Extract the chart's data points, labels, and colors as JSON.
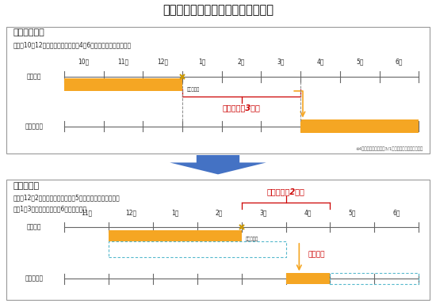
{
  "title": "原燃料費調整制度の見直しについて",
  "title_bg": "#c8f0f8",
  "panel1": {
    "label": "【現行制度】",
    "subtitle1": "〔例〕10－12月の平均燃料価格が翌4－6月分の燃料費調整に適用",
    "months": [
      "10月",
      "11月",
      "12月",
      "1月",
      "2月",
      "3月",
      "4月",
      "5月",
      "6月"
    ],
    "stats_label": "統計値公表",
    "timelag_label": "タイムラグ3ヶ月",
    "note": "※4月分料金は、最短で3/1から使用される料金に適用",
    "ylabel_fuel": "燃料価格",
    "ylabel_adj": "燃料費調整"
  },
  "panel2": {
    "label": "【新制度】",
    "subtitle1": "〔例〕12－2月の平均燃料価格が翌5月分の燃料費調整に適用",
    "subtitle2": "　　1－3月の　〃　　　が6月分の　　〃",
    "months": [
      "11月",
      "12月",
      "1月",
      "2月",
      "3月",
      "4月",
      "5月",
      "6月"
    ],
    "stats_label": "統計値公表",
    "timelag_label": "タイムラグ2ヶ月",
    "maigetsu_label": "毎月調整",
    "ylabel_fuel": "燃料価格",
    "ylabel_adj": "燃料費調整"
  },
  "arrow_color": "#4472c4",
  "orange": "#f5a623",
  "red": "#cc0000",
  "blue_dashed": "#55b8cc",
  "gray_line": "#666666",
  "text_dark": "#222222"
}
